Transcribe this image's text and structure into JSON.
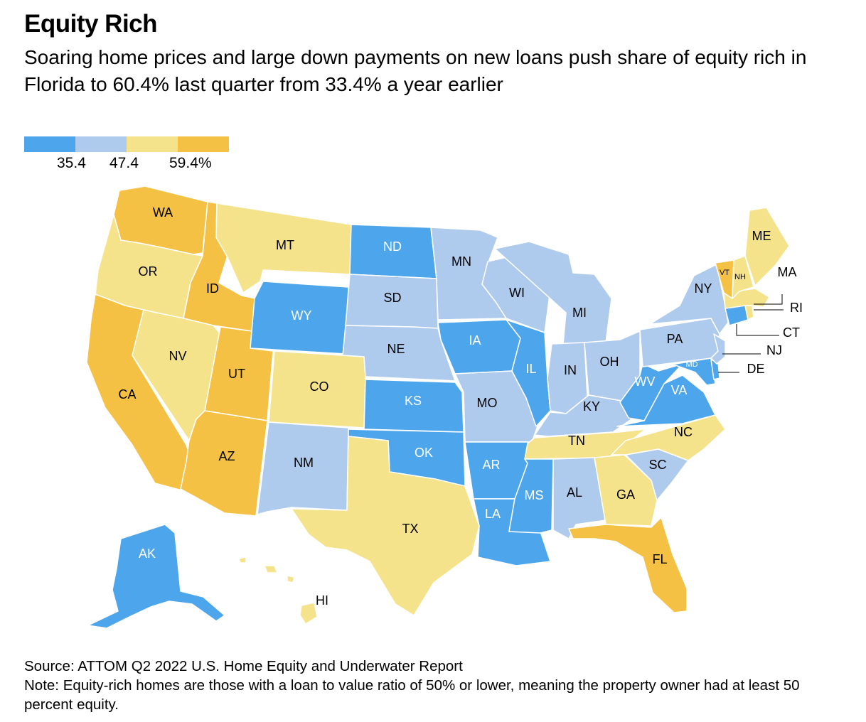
{
  "title": "Equity Rich",
  "subtitle": "Soaring home prices and large down payments on new loans push share of equity rich in Florida to 60.4% last quarter from 33.4% a year earlier",
  "legend": {
    "colors": [
      "#4DA6EB",
      "#AECBEE",
      "#F5E38C",
      "#F5C144"
    ],
    "ticks": [
      "35.4",
      "47.4",
      "59.4%"
    ]
  },
  "colors": {
    "band1": "#4DA6EB",
    "band2": "#AECBEE",
    "band3": "#F5E38C",
    "band4": "#F5C144"
  },
  "states": {
    "WA": "4",
    "OR": "3",
    "CA": "4",
    "ID": "4",
    "NV": "3",
    "UT": "4",
    "AZ": "4",
    "MT": "3",
    "WY": "1",
    "CO": "3",
    "NM": "2",
    "ND": "1",
    "SD": "2",
    "NE": "2",
    "KS": "1",
    "OK": "1",
    "TX": "3",
    "MN": "2",
    "IA": "1",
    "MO": "2",
    "AR": "1",
    "LA": "1",
    "WI": "2",
    "IL": "1",
    "MI": "2",
    "IN": "2",
    "OH": "2",
    "KY": "2",
    "TN": "3",
    "MS": "1",
    "AL": "2",
    "GA": "3",
    "FL": "4",
    "SC": "2",
    "NC": "3",
    "VA": "1",
    "WV": "1",
    "MD": "1",
    "DE": "1",
    "PA": "2",
    "NY": "2",
    "NJ": "2",
    "CT": "1",
    "RI": "3",
    "MA": "3",
    "VT": "4",
    "NH": "3",
    "ME": "3",
    "AK": "1",
    "HI": "3"
  },
  "labels": {
    "WA": "WA",
    "OR": "OR",
    "CA": "CA",
    "ID": "ID",
    "NV": "NV",
    "UT": "UT",
    "AZ": "AZ",
    "MT": "MT",
    "WY": "WY",
    "CO": "CO",
    "NM": "NM",
    "ND": "ND",
    "SD": "SD",
    "NE": "NE",
    "KS": "KS",
    "OK": "OK",
    "TX": "TX",
    "MN": "MN",
    "IA": "IA",
    "MO": "MO",
    "AR": "AR",
    "LA": "LA",
    "WI": "WI",
    "IL": "IL",
    "MI": "MI",
    "IN": "IN",
    "OH": "OH",
    "KY": "KY",
    "TN": "TN",
    "MS": "MS",
    "AL": "AL",
    "GA": "GA",
    "FL": "FL",
    "SC": "SC",
    "NC": "NC",
    "VA": "VA",
    "WV": "WV",
    "MD": "MD",
    "DE": "DE",
    "PA": "PA",
    "NY": "NY",
    "NJ": "NJ",
    "CT": "CT",
    "RI": "RI",
    "MA": "MA",
    "VT": "VT",
    "NH": "NH",
    "ME": "ME",
    "AK": "AK",
    "HI": "HI"
  },
  "source": "Source: ATTOM Q2 2022 U.S. Home Equity and Underwater Report",
  "note": "Note: Equity-rich homes are those with a loan to value ratio of 50% or lower, meaning the property owner had at least 50 percent equity."
}
